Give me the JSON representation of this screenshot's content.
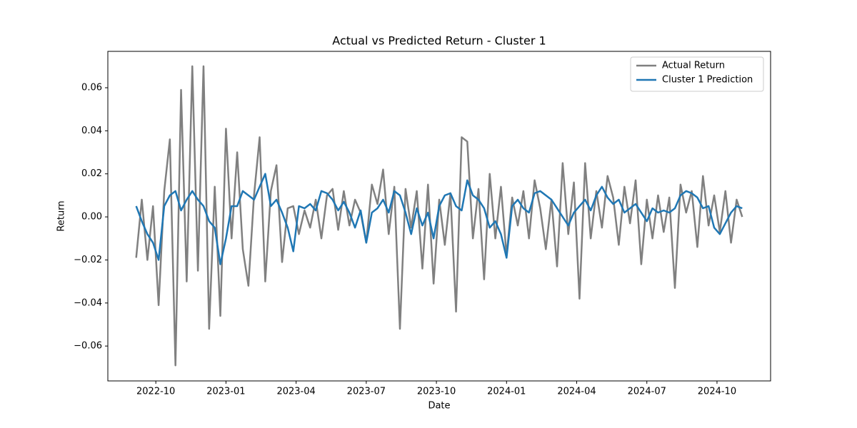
{
  "chart_data": {
    "type": "line",
    "title": "Actual vs Predicted Return - Cluster 1",
    "xlabel": "Date",
    "ylabel": "Return",
    "x": [
      2022.68,
      2022.7,
      2022.72,
      2022.74,
      2022.76,
      2022.78,
      2022.8,
      2022.82,
      2022.84,
      2022.86,
      2022.88,
      2022.9,
      2022.92,
      2022.94,
      2022.96,
      2022.98,
      2023.0,
      2023.02,
      2023.04,
      2023.06,
      2023.08,
      2023.1,
      2023.12,
      2023.14,
      2023.16,
      2023.18,
      2023.2,
      2023.22,
      2023.24,
      2023.26,
      2023.28,
      2023.3,
      2023.32,
      2023.34,
      2023.36,
      2023.38,
      2023.4,
      2023.42,
      2023.44,
      2023.46,
      2023.48,
      2023.5,
      2023.52,
      2023.54,
      2023.56,
      2023.58,
      2023.6,
      2023.62,
      2023.64,
      2023.66,
      2023.68,
      2023.7,
      2023.72,
      2023.74,
      2023.76,
      2023.78,
      2023.8,
      2023.82,
      2023.84,
      2023.86,
      2023.88,
      2023.9,
      2023.92,
      2023.94,
      2023.96,
      2023.98,
      2024.0,
      2024.02,
      2024.04,
      2024.06,
      2024.08,
      2024.1,
      2024.12,
      2024.14,
      2024.16,
      2024.18,
      2024.2,
      2024.22,
      2024.24,
      2024.26,
      2024.28,
      2024.3,
      2024.32,
      2024.34,
      2024.36,
      2024.38,
      2024.4,
      2024.42,
      2024.44,
      2024.46,
      2024.48,
      2024.5,
      2024.52,
      2024.54,
      2024.56,
      2024.58,
      2024.6,
      2024.62,
      2024.64,
      2024.66,
      2024.68,
      2024.7,
      2024.72,
      2024.74,
      2024.76,
      2024.78,
      2024.8,
      2024.82,
      2024.84
    ],
    "series": [
      {
        "name": "Actual Return",
        "color": "#808080",
        "values": [
          -0.019,
          0.008,
          -0.02,
          0.005,
          -0.041,
          0.012,
          0.036,
          -0.069,
          0.059,
          -0.03,
          0.07,
          -0.025,
          0.07,
          -0.052,
          0.014,
          -0.046,
          0.041,
          -0.01,
          0.03,
          -0.015,
          -0.032,
          0.01,
          0.037,
          -0.03,
          0.012,
          0.024,
          -0.021,
          0.004,
          0.005,
          -0.008,
          0.003,
          -0.005,
          0.008,
          -0.01,
          0.01,
          0.013,
          -0.006,
          0.012,
          -0.004,
          0.008,
          0.002,
          -0.012,
          0.015,
          0.006,
          0.022,
          -0.008,
          0.014,
          -0.052,
          0.013,
          -0.005,
          0.012,
          -0.024,
          0.015,
          -0.031,
          0.008,
          -0.013,
          0.011,
          -0.044,
          0.037,
          0.035,
          -0.01,
          0.013,
          -0.029,
          0.02,
          -0.01,
          0.014,
          -0.018,
          0.009,
          -0.004,
          0.012,
          -0.01,
          0.017,
          0.004,
          -0.015,
          0.008,
          -0.023,
          0.025,
          -0.008,
          0.016,
          -0.038,
          0.025,
          -0.01,
          0.012,
          -0.005,
          0.019,
          0.009,
          -0.013,
          0.014,
          -0.003,
          0.017,
          -0.022,
          0.008,
          -0.01,
          0.01,
          -0.007,
          0.009,
          -0.033,
          0.015,
          0.002,
          0.012,
          -0.014,
          0.019,
          -0.004,
          0.01,
          -0.007,
          0.012,
          -0.012,
          0.008,
          0.0
        ]
      },
      {
        "name": "Cluster 1 Prediction",
        "color": "#1f77b4",
        "values": [
          0.005,
          -0.002,
          -0.008,
          -0.012,
          -0.02,
          0.005,
          0.01,
          0.012,
          0.003,
          0.008,
          0.012,
          0.008,
          0.005,
          -0.002,
          -0.005,
          -0.022,
          -0.01,
          0.005,
          0.005,
          0.012,
          0.01,
          0.008,
          0.014,
          0.02,
          0.005,
          0.008,
          0.002,
          -0.005,
          -0.016,
          0.005,
          0.004,
          0.006,
          0.003,
          0.012,
          0.011,
          0.008,
          0.003,
          0.007,
          0.002,
          -0.005,
          0.003,
          -0.012,
          0.002,
          0.004,
          0.008,
          0.002,
          0.012,
          0.01,
          0.002,
          -0.008,
          0.004,
          -0.004,
          0.002,
          -0.01,
          0.005,
          0.01,
          0.011,
          0.005,
          0.003,
          0.017,
          0.01,
          0.008,
          0.004,
          -0.005,
          -0.002,
          -0.008,
          -0.019,
          0.005,
          0.008,
          0.004,
          0.002,
          0.011,
          0.012,
          0.01,
          0.008,
          0.004,
          0.0,
          -0.004,
          0.002,
          0.005,
          0.008,
          0.003,
          0.01,
          0.014,
          0.009,
          0.006,
          0.008,
          0.002,
          0.004,
          0.006,
          0.002,
          -0.002,
          0.004,
          0.002,
          0.003,
          0.002,
          0.004,
          0.01,
          0.012,
          0.011,
          0.009,
          0.004,
          0.005,
          -0.005,
          -0.008,
          -0.003,
          0.002,
          0.005,
          0.004
        ]
      }
    ],
    "xlim": [
      2022.579,
      2024.941
    ],
    "xticks": [
      {
        "value": 2022.75,
        "label": "2022-10"
      },
      {
        "value": 2023.0,
        "label": "2023-01"
      },
      {
        "value": 2023.25,
        "label": "2023-04"
      },
      {
        "value": 2023.5,
        "label": "2023-07"
      },
      {
        "value": 2023.75,
        "label": "2023-10"
      },
      {
        "value": 2024.0,
        "label": "2024-01"
      },
      {
        "value": 2024.25,
        "label": "2024-04"
      },
      {
        "value": 2024.5,
        "label": "2024-07"
      },
      {
        "value": 2024.75,
        "label": "2024-10"
      }
    ],
    "ylim": [
      -0.0762,
      0.0769
    ],
    "yticks": [
      {
        "value": -0.06,
        "label": "−0.06"
      },
      {
        "value": -0.04,
        "label": "−0.04"
      },
      {
        "value": -0.02,
        "label": "−0.02"
      },
      {
        "value": 0,
        "label": "0.00"
      },
      0.02,
      0.04,
      0.06
    ],
    "grid": false,
    "legend": "upper right"
  }
}
